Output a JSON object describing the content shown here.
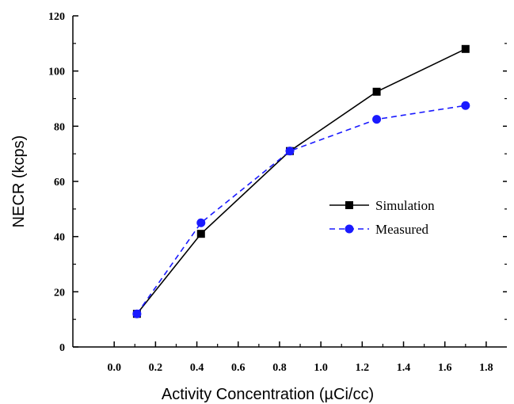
{
  "chart_data": {
    "type": "line",
    "xlabel": "Activity Concentration (µCi/cc)",
    "ylabel": "NECR (kcps)",
    "xlim": [
      -0.2,
      1.9
    ],
    "ylim": [
      0,
      120
    ],
    "x_ticks": [
      "0.0",
      "0.2",
      "0.4",
      "0.6",
      "0.8",
      "1.0",
      "1.2",
      "1.4",
      "1.6",
      "1.8"
    ],
    "y_ticks": [
      "0",
      "20",
      "40",
      "60",
      "80",
      "100",
      "120"
    ],
    "grid": false,
    "legend_position": "center-right",
    "series": [
      {
        "name": "Simulation",
        "x": [
          0.11,
          0.42,
          0.85,
          1.27,
          1.7
        ],
        "y": [
          12,
          41,
          71,
          92.5,
          108
        ],
        "color": "#000000",
        "line_style": "solid",
        "marker": "square"
      },
      {
        "name": "Measured",
        "x": [
          0.11,
          0.42,
          0.85,
          1.27,
          1.7
        ],
        "y": [
          12,
          45,
          71,
          82.5,
          87.5
        ],
        "color": "#1a1aff",
        "line_style": "dashed",
        "marker": "circle"
      }
    ]
  }
}
